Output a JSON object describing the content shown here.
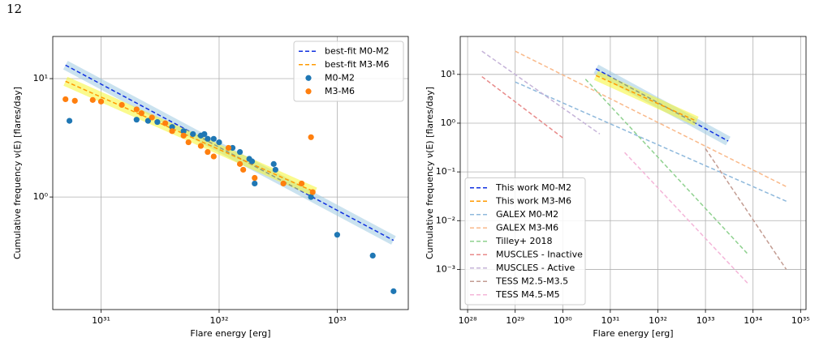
{
  "page_number": "12",
  "chart_data": [
    {
      "type": "line",
      "xscale": "log",
      "yscale": "log",
      "grid": true,
      "legend": "upper right",
      "xlabel": "Flare energy [erg]",
      "ylabel": "Cumulative frequency ν(E) [flares/day]",
      "xlim": [
        3.9e+30,
        4e+33
      ],
      "ylim": [
        0.112,
        22.7
      ],
      "xticks": [
        {
          "value": 1e+31,
          "label": "10³¹"
        },
        {
          "value": 1e+32,
          "label": "10³²"
        },
        {
          "value": 1e+33,
          "label": "10³³"
        }
      ],
      "yticks": [
        {
          "value": 1,
          "label": "10⁰"
        },
        {
          "value": 10,
          "label": "10¹"
        }
      ],
      "series": [
        {
          "name": "best-fit M0-M2",
          "style": "dashed",
          "color": "#1030e0",
          "band_color": "#9ecae1",
          "x": [
            5e+30,
            3e+33
          ],
          "values": [
            13,
            0.43
          ]
        },
        {
          "name": "best-fit M3-M6",
          "style": "dashed",
          "color": "#ff9900",
          "band_color": "#f5f530",
          "x": [
            5e+30,
            6.5e+32
          ],
          "values": [
            9.5,
            1.1
          ]
        },
        {
          "name": "M0-M2",
          "style": "markers",
          "color": "#1f77b4",
          "x": [
            5.4e+30,
            2e+31,
            2.5e+31,
            3e+31,
            4e+31,
            5e+31,
            6e+31,
            7e+31,
            7.5e+31,
            8e+31,
            9e+31,
            1e+32,
            1.3e+32,
            1.5e+32,
            1.8e+32,
            1.9e+32,
            2e+32,
            2.9e+32,
            3e+32,
            6e+32,
            1e+33,
            2e+33,
            3e+33
          ],
          "values": [
            4.4,
            4.5,
            4.4,
            4.3,
            3.9,
            3.6,
            3.4,
            3.3,
            3.4,
            3.1,
            3.1,
            2.9,
            2.6,
            2.4,
            2.1,
            2.0,
            1.3,
            1.9,
            1.7,
            1.0,
            0.48,
            0.32,
            0.16
          ]
        },
        {
          "name": "M3-M6",
          "style": "markers",
          "color": "#ff7f0e",
          "x": [
            5e+30,
            6e+30,
            8.5e+30,
            1e+31,
            1.5e+31,
            2e+31,
            2.2e+31,
            2.7e+31,
            3.5e+31,
            4e+31,
            5e+31,
            5.5e+31,
            7e+31,
            8e+31,
            9e+31,
            1.2e+32,
            1.5e+32,
            1.6e+32,
            2e+32,
            3.5e+32,
            5e+32,
            6e+32,
            6.2e+32
          ],
          "values": [
            6.7,
            6.5,
            6.6,
            6.4,
            6.0,
            5.5,
            5.1,
            4.7,
            4.2,
            3.6,
            3.3,
            2.9,
            2.7,
            2.4,
            2.2,
            2.6,
            1.9,
            1.7,
            1.45,
            1.3,
            1.3,
            3.2,
            1.1
          ]
        }
      ]
    },
    {
      "type": "line",
      "xscale": "log",
      "yscale": "log",
      "grid": true,
      "legend": "lower left",
      "xlabel": "Flare energy [erg]",
      "ylabel": "Cumulative frequency ν(E) [flares/day]",
      "xlim": [
        7e+27,
        1.3e+35
      ],
      "ylim": [
        0.00015,
        60
      ],
      "xticks": [
        {
          "value": 1e+28,
          "label": "10²⁸"
        },
        {
          "value": 1e+29,
          "label": "10²⁹"
        },
        {
          "value": 1e+30,
          "label": "10³⁰"
        },
        {
          "value": 1e+31,
          "label": "10³¹"
        },
        {
          "value": 1e+32,
          "label": "10³²"
        },
        {
          "value": 1e+33,
          "label": "10³³"
        },
        {
          "value": 1e+34,
          "label": "10³⁴"
        },
        {
          "value": 1e+35,
          "label": "10³⁵"
        }
      ],
      "yticks": [
        {
          "value": 0.001,
          "label": "10⁻³"
        },
        {
          "value": 0.01,
          "label": "10⁻²"
        },
        {
          "value": 0.1,
          "label": "10⁻¹"
        },
        {
          "value": 1,
          "label": "10⁰"
        },
        {
          "value": 10,
          "label": "10¹"
        }
      ],
      "series": [
        {
          "name": "This work M0-M2",
          "style": "dashed",
          "color": "#1030e0",
          "band_color": "#9ecae1",
          "x": [
            5e+30,
            3e+33
          ],
          "values": [
            13,
            0.43
          ]
        },
        {
          "name": "This work M3-M6",
          "style": "dashed",
          "color": "#ff9900",
          "band_color": "#f5f530",
          "x": [
            5e+30,
            6.5e+32
          ],
          "values": [
            9.5,
            1.1
          ]
        },
        {
          "name": "GALEX M0-M2",
          "style": "dashed",
          "color": "#8fb9dc",
          "x": [
            1e+29,
            5e+34
          ],
          "values": [
            7,
            0.025
          ]
        },
        {
          "name": "GALEX M3-M6",
          "style": "dashed",
          "color": "#f9b98a",
          "x": [
            1e+29,
            5e+34
          ],
          "values": [
            30,
            0.05
          ]
        },
        {
          "name": "Tilley+ 2018",
          "style": "dashed",
          "color": "#8fd18f",
          "x": [
            3e+30,
            8e+33
          ],
          "values": [
            8,
            0.002
          ]
        },
        {
          "name": "MUSCLES - Inactive",
          "style": "dashed",
          "color": "#e88a8a",
          "x": [
            2e+28,
            1e+30
          ],
          "values": [
            9,
            0.5
          ]
        },
        {
          "name": "MUSCLES - Active",
          "style": "dashed",
          "color": "#c5b3d8",
          "x": [
            2e+28,
            6e+30
          ],
          "values": [
            30,
            0.6
          ]
        },
        {
          "name": "TESS M2.5-M3.5",
          "style": "dashed",
          "color": "#c39c92",
          "x": [
            1e+33,
            5e+34
          ],
          "values": [
            0.3,
            0.001
          ]
        },
        {
          "name": "TESS M4.5-M5",
          "style": "dashed",
          "color": "#f4b5d8",
          "x": [
            2e+31,
            8e+33
          ],
          "values": [
            0.25,
            0.0005
          ]
        }
      ]
    }
  ]
}
